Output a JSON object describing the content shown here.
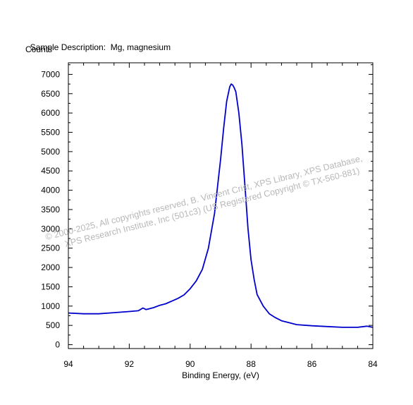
{
  "header": {
    "sample_label": "Sample Description:",
    "sample_value": "Mg, magnesium",
    "counts_label": "Counts"
  },
  "watermark": {
    "line1": "© 2000-2025,  All copyrights reserved,   B. Vincent Crist,  XPS Library, XPS Database,",
    "line2": "XPS Research Institute, Inc (501c3)   (US Registered Copyright © TX-560-881)"
  },
  "chart_data": {
    "type": "line",
    "title": "",
    "xlabel": "Binding Energy, (eV)",
    "ylabel": "Counts",
    "xlim": [
      94,
      84
    ],
    "ylim": [
      -100,
      7300
    ],
    "x_reversed": true,
    "x_ticks": [
      94,
      92,
      90,
      88,
      86,
      84
    ],
    "x_tick_labels": [
      "94",
      "92",
      "90",
      "88",
      "86",
      "84"
    ],
    "y_ticks": [
      0,
      500,
      1000,
      1500,
      2000,
      2500,
      3000,
      3500,
      4000,
      4500,
      5000,
      5500,
      6000,
      6500,
      7000
    ],
    "y_tick_labels": [
      "0",
      "500",
      "1000",
      "1500",
      "2000",
      "2500",
      "3000",
      "3500",
      "4000",
      "4500",
      "5000",
      "5500",
      "6000",
      "6500",
      "7000"
    ],
    "grid": false,
    "line_color": "#0000cc",
    "series": [
      {
        "x": [
          94.0,
          93.5,
          93.0,
          92.5,
          92.0,
          91.7,
          91.55,
          91.45,
          91.2,
          91.0,
          90.8,
          90.6,
          90.4,
          90.2,
          90.0,
          89.8,
          89.6,
          89.4,
          89.2,
          89.0,
          88.9,
          88.8,
          88.7,
          88.65,
          88.6,
          88.55,
          88.5,
          88.4,
          88.3,
          88.2,
          88.1,
          88.0,
          87.9,
          87.8,
          87.6,
          87.4,
          87.2,
          87.0,
          86.8,
          86.5,
          86.0,
          85.5,
          85.0,
          84.5,
          84.2,
          84.0
        ],
        "y": [
          820,
          800,
          800,
          830,
          860,
          880,
          950,
          910,
          960,
          1020,
          1060,
          1130,
          1200,
          1290,
          1450,
          1650,
          1950,
          2500,
          3400,
          4800,
          5600,
          6300,
          6680,
          6750,
          6720,
          6650,
          6550,
          6000,
          5200,
          4100,
          3000,
          2200,
          1700,
          1300,
          1000,
          800,
          700,
          620,
          580,
          520,
          490,
          470,
          450,
          450,
          480,
          450
        ]
      }
    ]
  }
}
